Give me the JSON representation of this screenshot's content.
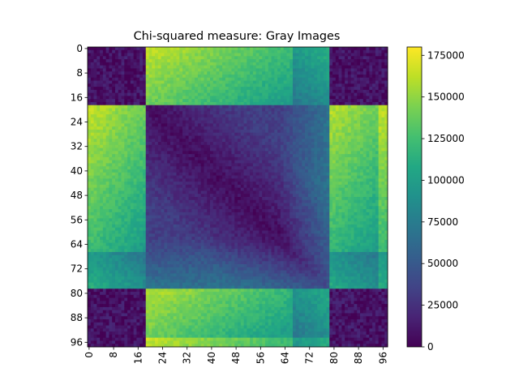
{
  "chart_data": {
    "type": "heatmap",
    "title": "Chi-squared measure: Gray Images",
    "xlabel": "",
    "ylabel": "",
    "matrix_size": 98,
    "x_ticks": [
      "0",
      "8",
      "16",
      "24",
      "32",
      "40",
      "48",
      "56",
      "64",
      "72",
      "80",
      "88",
      "96"
    ],
    "y_ticks": [
      "0",
      "8",
      "16",
      "24",
      "32",
      "40",
      "48",
      "56",
      "64",
      "72",
      "80",
      "88",
      "96"
    ],
    "tick_values": [
      0,
      8,
      16,
      24,
      32,
      40,
      48,
      56,
      64,
      72,
      80,
      88,
      96
    ],
    "colormap": "viridis",
    "colorbar": {
      "range": [
        0,
        180000
      ],
      "ticks": [
        "0",
        "25000",
        "50000",
        "75000",
        "100000",
        "125000",
        "150000",
        "175000"
      ],
      "tick_values": [
        0,
        25000,
        50000,
        75000,
        100000,
        125000,
        150000,
        175000
      ]
    },
    "groups": [
      {
        "start": 0,
        "end": 18
      },
      {
        "start": 19,
        "end": 78
      },
      {
        "start": 79,
        "end": 97
      }
    ],
    "block_values": [
      [
        0,
        140000,
        0
      ],
      [
        140000,
        10000,
        140000
      ],
      [
        0,
        140000,
        0
      ]
    ],
    "grid": false
  }
}
